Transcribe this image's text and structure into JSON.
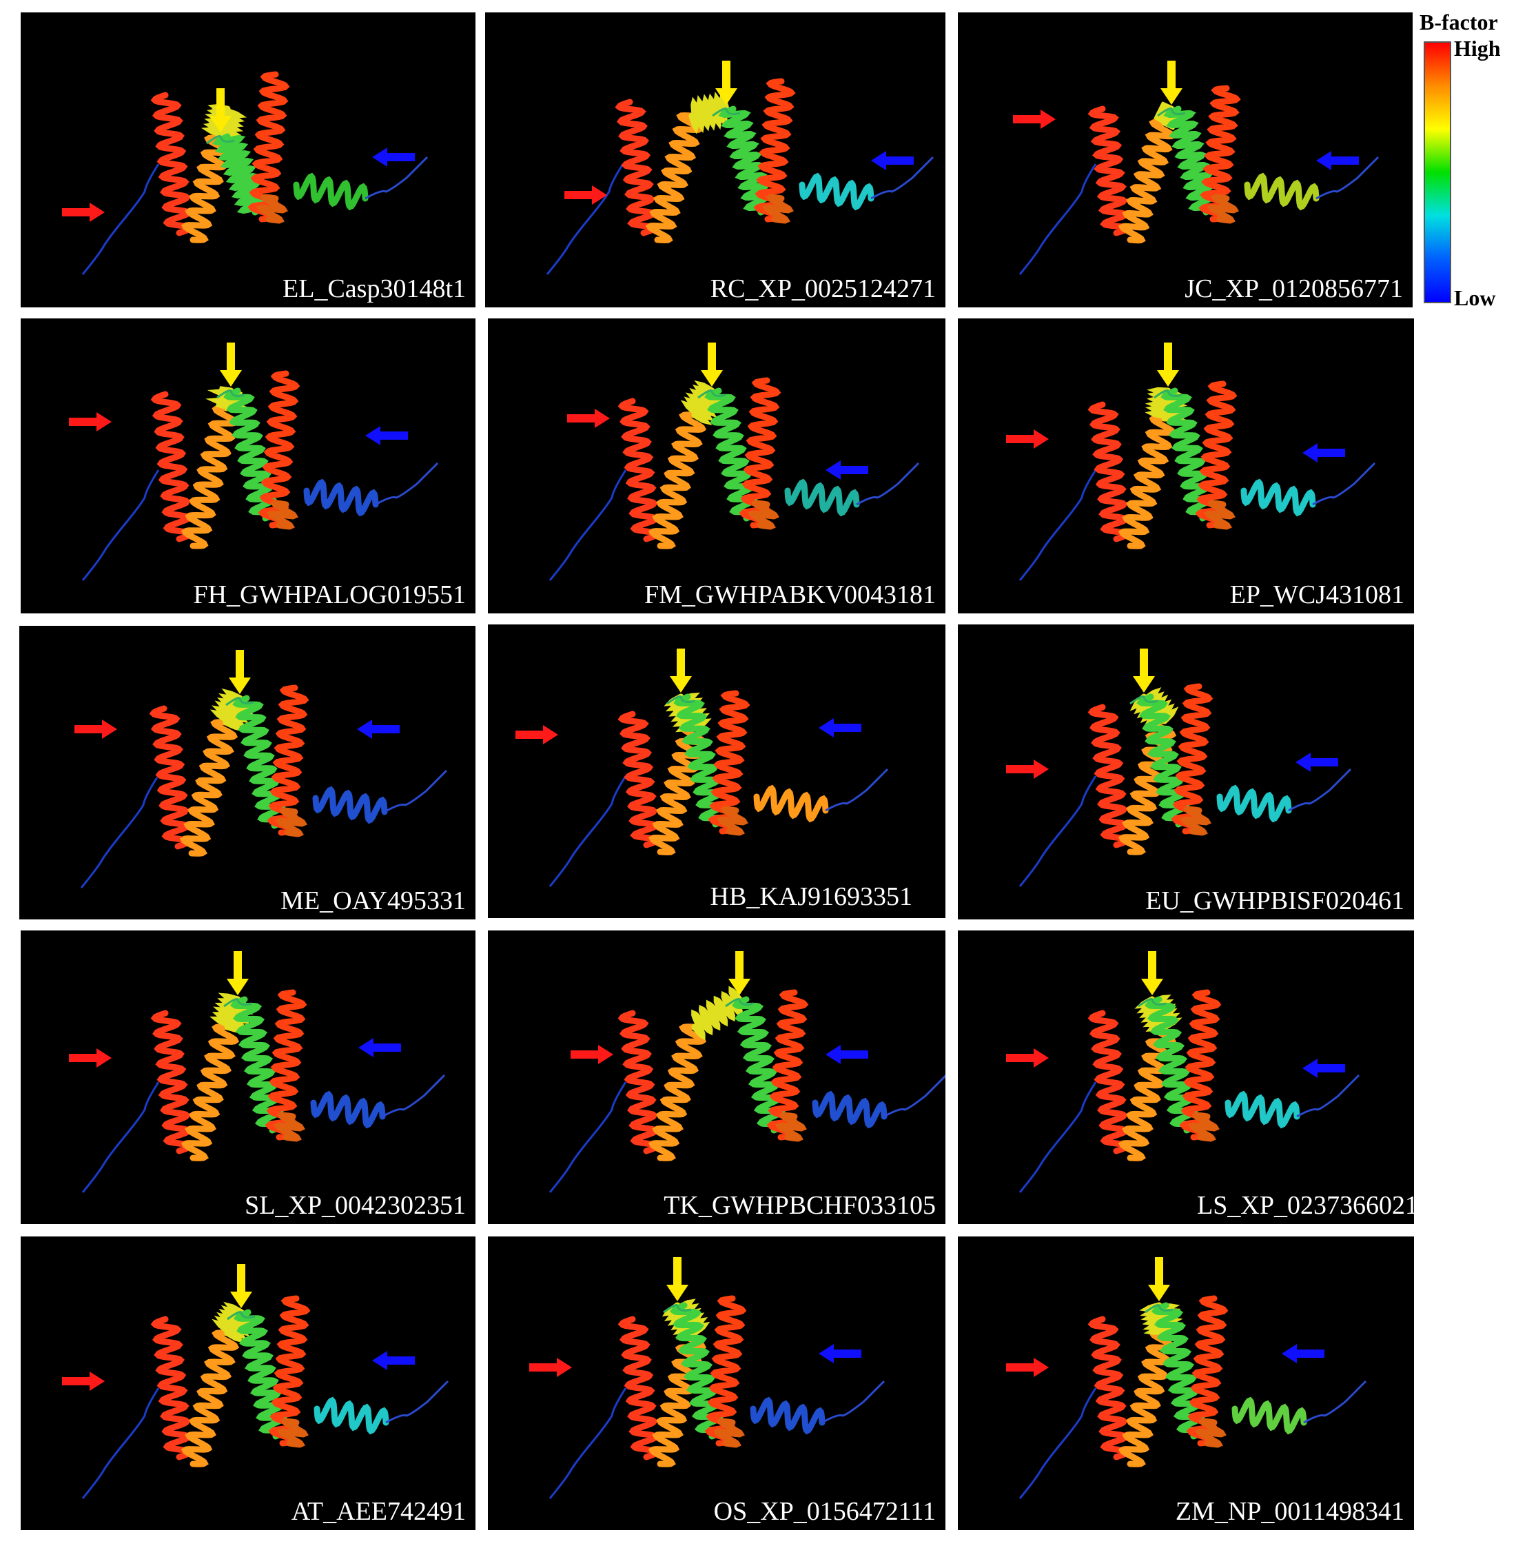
{
  "legend": {
    "title": "B-factor",
    "high_label": "High",
    "low_label": "Low",
    "gradient_colors": [
      "#ff0000",
      "#ff8c00",
      "#ffff00",
      "#00e000",
      "#00e0e0",
      "#0060ff",
      "#0000ff"
    ]
  },
  "arrow_colors": {
    "yellow": "#ffeb00",
    "red": "#ff1a1a",
    "blue": "#1010ff"
  },
  "panels": [
    {
      "label": "EL_Casp30148t1"
    },
    {
      "label": "RC_XP_0025124271"
    },
    {
      "label": "JC_XP_0120856771"
    },
    {
      "label": "FH_GWHPALOG019551"
    },
    {
      "label": "FM_GWHPABKV0043181"
    },
    {
      "label": "EP_WCJ431081"
    },
    {
      "label": "ME_OAY495331"
    },
    {
      "label": "HB_KAJ91693351"
    },
    {
      "label": "EU_GWHPBISF020461"
    },
    {
      "label": "SL_XP_0042302351"
    },
    {
      "label": "TK_GWHPBCHF033105"
    },
    {
      "label": "LS_XP_0237366021"
    },
    {
      "label": "AT_AEE742491"
    },
    {
      "label": "OS_XP_0156472111"
    },
    {
      "label": "ZM_NP_0011498341"
    }
  ]
}
